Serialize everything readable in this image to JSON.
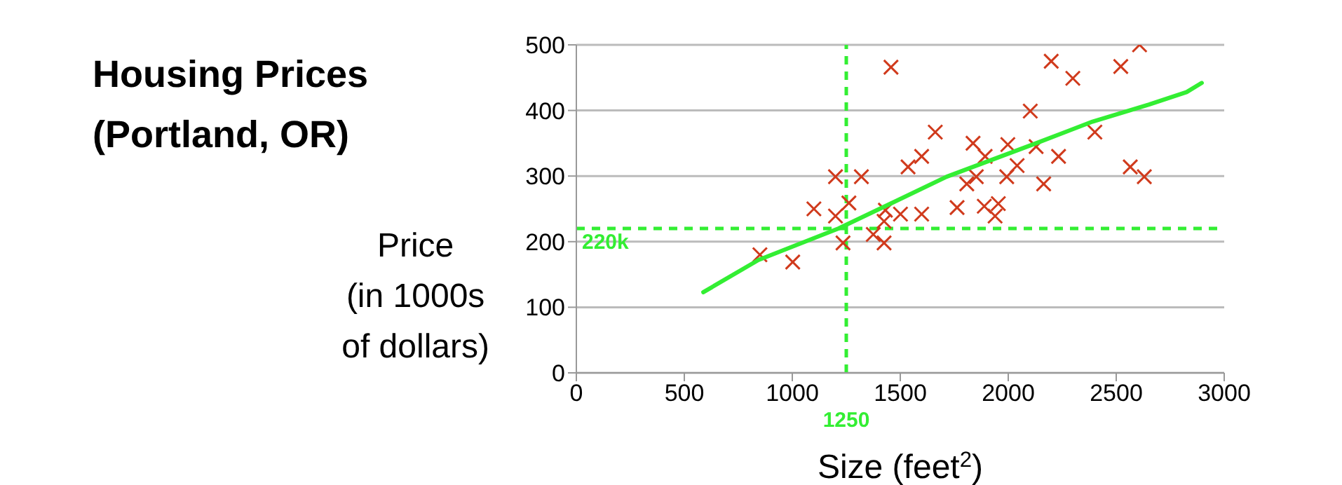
{
  "chart_data": {
    "type": "scatter",
    "title": "Housing Prices\n(Portland, OR)",
    "xlabel": "Size (feet$^{2}$)",
    "ylabel": "Price\n(in 1000s\nof dollars)",
    "xlim": [
      0,
      3000
    ],
    "xticks": [
      0,
      500,
      1000,
      1500,
      2000,
      2500,
      3000
    ],
    "ylim": [
      0,
      500
    ],
    "yticks": [
      0,
      100,
      200,
      300,
      400,
      500
    ],
    "grid": "y",
    "marker": "cross",
    "series": [
      {
        "color": "#d03a1c",
        "x": [
          850,
          1002,
          1100,
          1200,
          1200,
          1235,
          1262,
          1320,
          1375,
          1425,
          1425,
          1431,
          1457,
          1501,
          1536,
          1599,
          1599,
          1662,
          1763,
          1808,
          1837,
          1852,
          1893,
          1889,
          1954,
          1939,
          1993,
          1998,
          2041,
          2102,
          2129,
          2164,
          2199,
          2233,
          2299,
          2401,
          2521,
          2565,
          2608,
          2630
        ],
        "values": [
          180,
          169,
          250,
          299,
          239,
          198,
          259,
          299,
          211,
          198,
          231,
          248,
          466,
          242,
          314,
          330,
          242,
          367,
          252,
          288,
          350,
          299,
          330,
          254,
          258,
          239,
          299,
          348,
          316,
          399,
          345,
          288,
          475,
          330,
          449,
          367,
          467,
          314,
          500,
          299
        ]
      },
      {
        "type": "line",
        "color": "#33ee33",
        "marker": "none",
        "x": [
          588,
          843,
          1214,
          1715,
          2129,
          2390,
          2652,
          2826,
          2896
        ],
        "values": [
          123,
          172,
          220,
          299,
          350,
          383,
          409,
          428,
          442
        ]
      }
    ],
    "ref_lines": [
      {
        "axis": "x",
        "value": 1250,
        "label": "1250",
        "color": "#33ee33",
        "line_style": "dashed"
      },
      {
        "axis": "y",
        "value": 220,
        "label": "220k",
        "color": "#33ee33",
        "line_style": "dashed"
      }
    ]
  }
}
